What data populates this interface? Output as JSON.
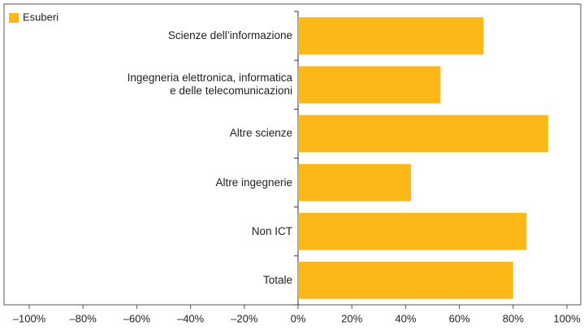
{
  "chart_data": {
    "type": "hbar",
    "categories": [
      "Scienze dell’informazione",
      "Ingegneria elettronica, informatica\ne delle telecomunicazioni",
      "Altre scienze",
      "Altre ingegnerie",
      "Non ICT",
      "Totale"
    ],
    "series": [
      {
        "name": "Esuberi",
        "color": "#fbb817",
        "values": [
          69,
          53,
          93,
          42,
          85,
          80
        ]
      }
    ],
    "xlim": [
      -100,
      100
    ],
    "xticks": [
      {
        "value": -100,
        "label": "–100%"
      },
      {
        "value": -80,
        "label": "–80%"
      },
      {
        "value": -60,
        "label": "–60%"
      },
      {
        "value": -40,
        "label": "–40%"
      },
      {
        "value": -20,
        "label": "–20%"
      },
      {
        "value": 0,
        "label": "0%"
      },
      {
        "value": 20,
        "label": "20%"
      },
      {
        "value": 40,
        "label": "40%"
      },
      {
        "value": 60,
        "label": "60%"
      },
      {
        "value": 80,
        "label": "80%"
      },
      {
        "value": 100,
        "label": "100%"
      }
    ],
    "legend": "top-left"
  }
}
